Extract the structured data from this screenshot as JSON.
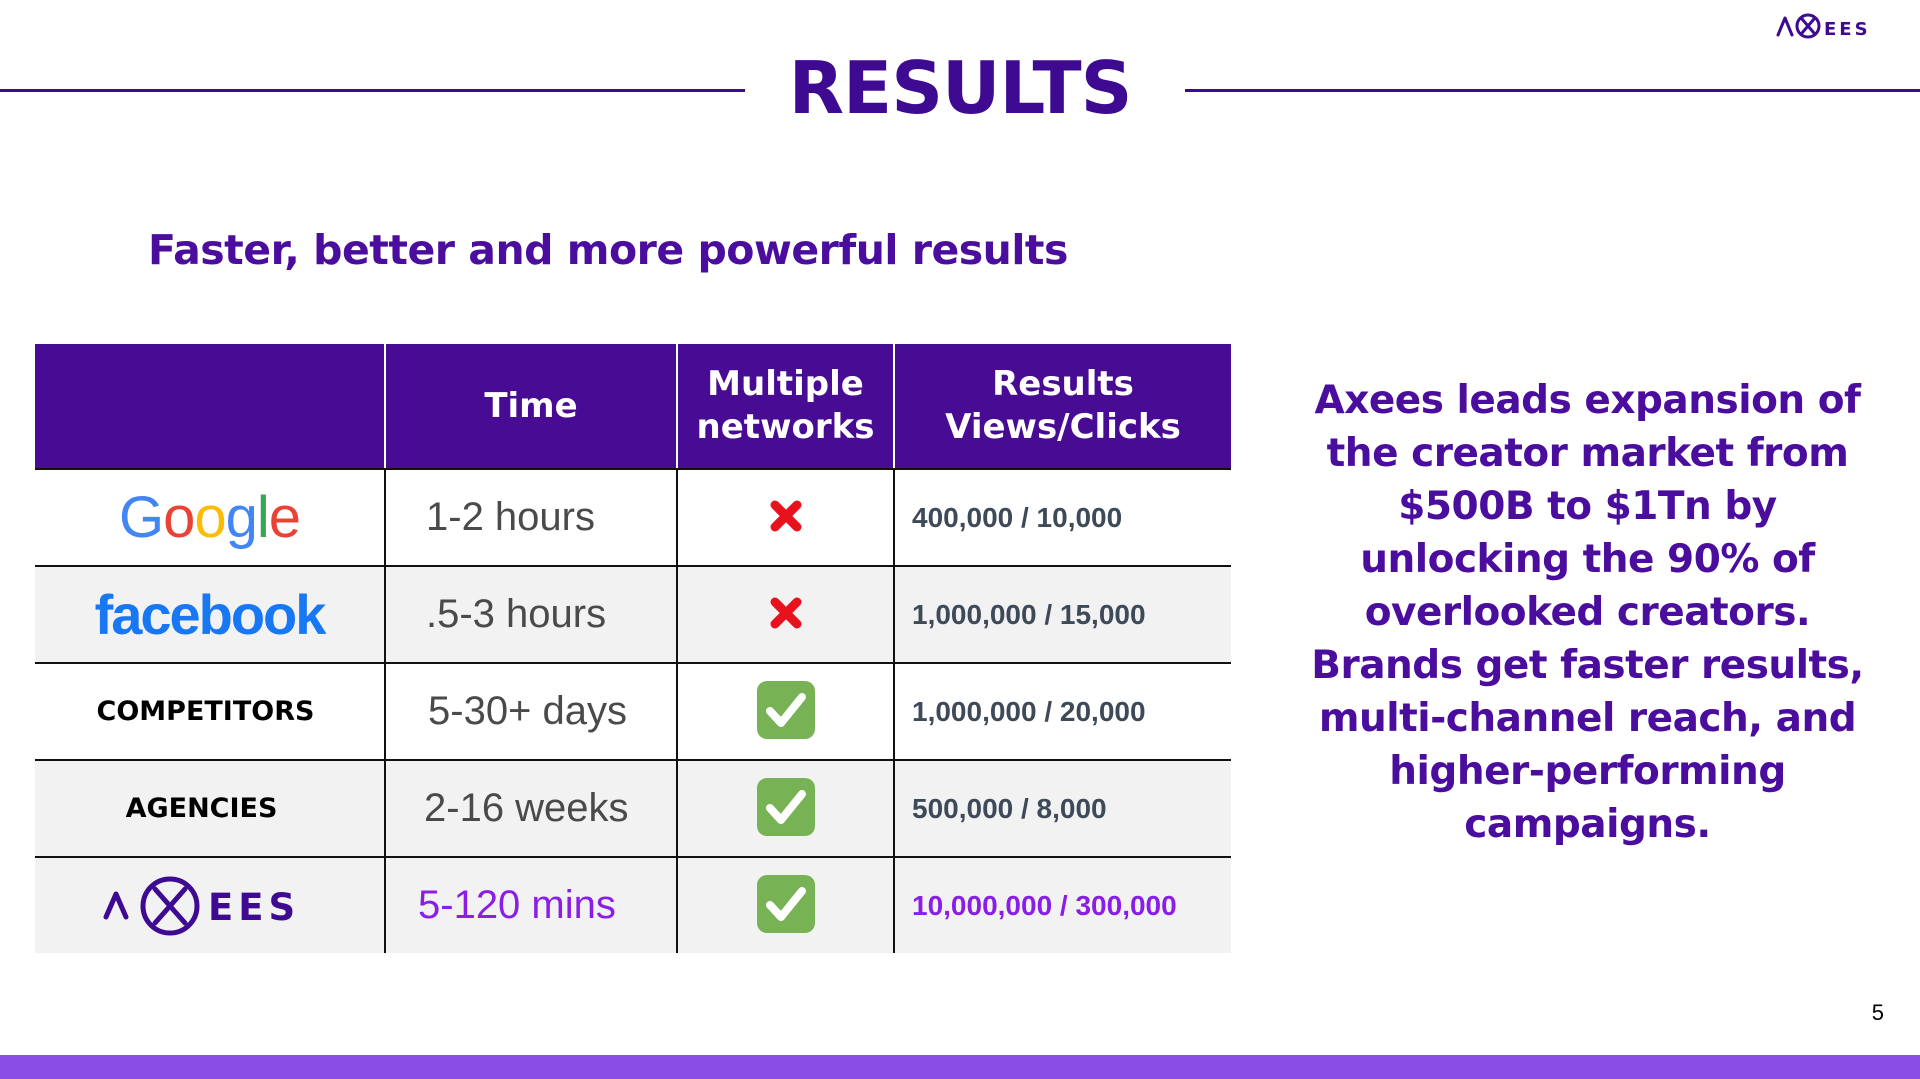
{
  "brand_logo_text": "EES",
  "header": {
    "title": "RESULTS"
  },
  "subtitle": "Faster, better and more powerful results",
  "table": {
    "columns": [
      "",
      "Time",
      "Multiple\nnetworks",
      "Results\nViews/Clicks"
    ],
    "rows": [
      {
        "name": "Google",
        "time": "1-2 hours",
        "multiple_networks": false,
        "results": "400,000 / 10,000"
      },
      {
        "name": "facebook",
        "time": ".5-3 hours",
        "multiple_networks": false,
        "results": "1,000,000 / 15,000"
      },
      {
        "name": "COMPETITORS",
        "time": "5-30+ days",
        "multiple_networks": true,
        "results": "1,000,000 / 20,000"
      },
      {
        "name": "AGENCIES",
        "time": "2-16 weeks",
        "multiple_networks": true,
        "results": "500,000 / 8,000"
      },
      {
        "name": "AXEES",
        "time": "5-120 mins",
        "multiple_networks": true,
        "results": "10,000,000 / 300,000"
      }
    ]
  },
  "side_text": "Axees leads expansion of the creator market from $500B to $1Tn by unlocking the 90% of overlooked creators. Brands get faster results, multi-channel reach, and higher-performing campaigns.",
  "page_number": "5",
  "colors": {
    "brand_purple": "#3d0a91",
    "header_purple": "#470b94",
    "highlight_purple": "#8a1ee6",
    "footer_bar": "#8a4ee6",
    "google_blue": "#4285f4",
    "google_red": "#ea4335",
    "google_yellow": "#fbbc05",
    "google_green": "#34a853",
    "facebook_blue": "#1877f2",
    "cross_red": "#e8121f",
    "check_green": "#77b255"
  },
  "icons": {
    "no": "cross-mark-icon",
    "yes": "check-mark-button-icon"
  }
}
